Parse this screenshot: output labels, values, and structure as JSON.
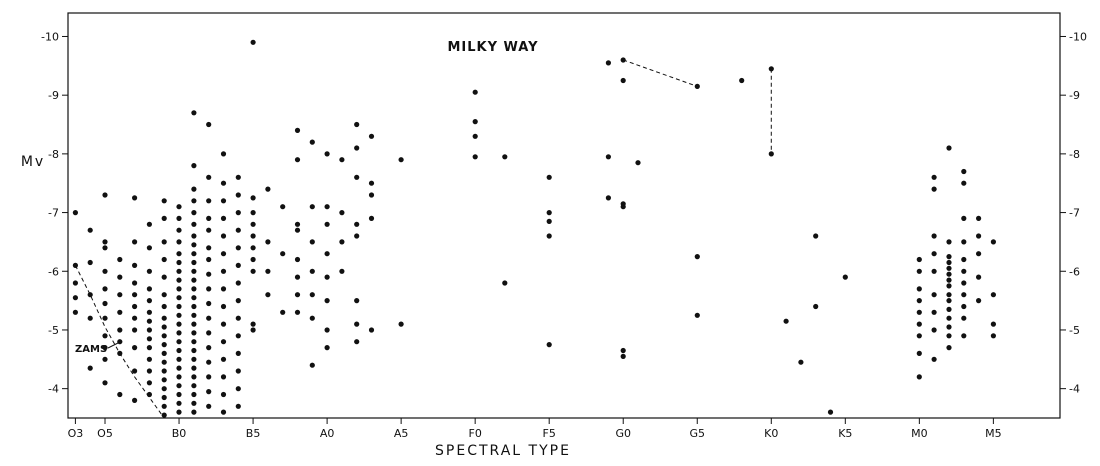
{
  "chart_data": {
    "type": "scatter",
    "title": "MILKY WAY",
    "xlabel": "SPECTRAL TYPE",
    "ylabel": "Mv",
    "x_ticks": [
      "O3",
      "O5",
      "B0",
      "B5",
      "A0",
      "A5",
      "F0",
      "F5",
      "G0",
      "G5",
      "K0",
      "K5",
      "M0",
      "M5"
    ],
    "x_tick_positions": [
      0,
      2,
      7,
      12,
      17,
      22,
      27,
      32,
      37,
      42,
      47,
      52,
      57,
      62
    ],
    "xlim": [
      -0.5,
      66.5
    ],
    "ylim": [
      -3.5,
      -10.4
    ],
    "y_ticks": [
      -4,
      -5,
      -6,
      -7,
      -8,
      -9,
      -10
    ],
    "y_tick_labels": [
      "-4",
      "-5",
      "-6",
      "-7",
      "-8",
      "-9",
      "-10"
    ],
    "annotation": "ZAMS",
    "zams_curve": [
      [
        0.0,
        -6.1
      ],
      [
        1.0,
        -5.6
      ],
      [
        2.0,
        -5.05
      ],
      [
        3.0,
        -4.6
      ],
      [
        4.0,
        -4.2
      ],
      [
        5.0,
        -3.85
      ],
      [
        6.0,
        -3.5
      ]
    ],
    "dashed_links": [
      [
        [
          37,
          -9.6
        ],
        [
          42,
          -9.15
        ]
      ],
      [
        [
          47,
          -9.45
        ],
        [
          47,
          -8.0
        ]
      ]
    ],
    "points": [
      [
        0,
        -7.0
      ],
      [
        0,
        -6.1
      ],
      [
        0,
        -5.8
      ],
      [
        0,
        -5.55
      ],
      [
        0,
        -5.3
      ],
      [
        1,
        -6.7
      ],
      [
        1,
        -6.15
      ],
      [
        1,
        -5.6
      ],
      [
        1,
        -5.2
      ],
      [
        1,
        -4.35
      ],
      [
        2,
        -7.3
      ],
      [
        2,
        -6.5
      ],
      [
        2,
        -6.4
      ],
      [
        2,
        -6.0
      ],
      [
        2,
        -5.7
      ],
      [
        2,
        -5.45
      ],
      [
        2,
        -5.2
      ],
      [
        2,
        -4.9
      ],
      [
        2,
        -4.7
      ],
      [
        2,
        -4.5
      ],
      [
        2,
        -4.1
      ],
      [
        3,
        -6.2
      ],
      [
        3,
        -5.9
      ],
      [
        3,
        -5.6
      ],
      [
        3,
        -5.3
      ],
      [
        3,
        -5.0
      ],
      [
        3,
        -4.8
      ],
      [
        3,
        -4.6
      ],
      [
        3,
        -3.9
      ],
      [
        4,
        -7.25
      ],
      [
        4,
        -6.5
      ],
      [
        4,
        -6.1
      ],
      [
        4,
        -5.8
      ],
      [
        4,
        -5.6
      ],
      [
        4,
        -5.4
      ],
      [
        4,
        -5.2
      ],
      [
        4,
        -5.0
      ],
      [
        4,
        -4.7
      ],
      [
        4,
        -4.3
      ],
      [
        4,
        -3.8
      ],
      [
        5,
        -6.8
      ],
      [
        5,
        -6.4
      ],
      [
        5,
        -6.0
      ],
      [
        5,
        -5.7
      ],
      [
        5,
        -5.5
      ],
      [
        5,
        -5.3
      ],
      [
        5,
        -5.15
      ],
      [
        5,
        -5.0
      ],
      [
        5,
        -4.85
      ],
      [
        5,
        -4.7
      ],
      [
        5,
        -4.5
      ],
      [
        5,
        -4.3
      ],
      [
        5,
        -4.1
      ],
      [
        5,
        -3.9
      ],
      [
        6,
        -7.2
      ],
      [
        6,
        -6.9
      ],
      [
        6,
        -6.5
      ],
      [
        6,
        -6.2
      ],
      [
        6,
        -5.9
      ],
      [
        6,
        -5.6
      ],
      [
        6,
        -5.4
      ],
      [
        6,
        -5.2
      ],
      [
        6,
        -5.05
      ],
      [
        6,
        -4.9
      ],
      [
        6,
        -4.75
      ],
      [
        6,
        -4.6
      ],
      [
        6,
        -4.45
      ],
      [
        6,
        -4.3
      ],
      [
        6,
        -4.15
      ],
      [
        6,
        -4.0
      ],
      [
        6,
        -3.85
      ],
      [
        6,
        -3.7
      ],
      [
        6,
        -3.55
      ],
      [
        7,
        -7.1
      ],
      [
        7,
        -6.9
      ],
      [
        7,
        -6.7
      ],
      [
        7,
        -6.5
      ],
      [
        7,
        -6.3
      ],
      [
        7,
        -6.15
      ],
      [
        7,
        -6.0
      ],
      [
        7,
        -5.85
      ],
      [
        7,
        -5.7
      ],
      [
        7,
        -5.55
      ],
      [
        7,
        -5.4
      ],
      [
        7,
        -5.25
      ],
      [
        7,
        -5.1
      ],
      [
        7,
        -4.95
      ],
      [
        7,
        -4.8
      ],
      [
        7,
        -4.65
      ],
      [
        7,
        -4.5
      ],
      [
        7,
        -4.35
      ],
      [
        7,
        -4.2
      ],
      [
        7,
        -4.05
      ],
      [
        7,
        -3.9
      ],
      [
        7,
        -3.75
      ],
      [
        7,
        -3.6
      ],
      [
        8,
        -8.7
      ],
      [
        8,
        -7.8
      ],
      [
        8,
        -7.4
      ],
      [
        8,
        -7.2
      ],
      [
        8,
        -7.0
      ],
      [
        8,
        -6.8
      ],
      [
        8,
        -6.6
      ],
      [
        8,
        -6.45
      ],
      [
        8,
        -6.3
      ],
      [
        8,
        -6.15
      ],
      [
        8,
        -6.0
      ],
      [
        8,
        -5.85
      ],
      [
        8,
        -5.7
      ],
      [
        8,
        -5.55
      ],
      [
        8,
        -5.4
      ],
      [
        8,
        -5.25
      ],
      [
        8,
        -5.1
      ],
      [
        8,
        -4.95
      ],
      [
        8,
        -4.8
      ],
      [
        8,
        -4.65
      ],
      [
        8,
        -4.5
      ],
      [
        8,
        -4.35
      ],
      [
        8,
        -4.2
      ],
      [
        8,
        -4.05
      ],
      [
        8,
        -3.9
      ],
      [
        8,
        -3.75
      ],
      [
        8,
        -3.6
      ],
      [
        9,
        -8.5
      ],
      [
        9,
        -7.6
      ],
      [
        9,
        -7.2
      ],
      [
        9,
        -6.9
      ],
      [
        9,
        -6.7
      ],
      [
        9,
        -6.4
      ],
      [
        9,
        -6.2
      ],
      [
        9,
        -5.95
      ],
      [
        9,
        -5.7
      ],
      [
        9,
        -5.45
      ],
      [
        9,
        -5.2
      ],
      [
        9,
        -4.95
      ],
      [
        9,
        -4.7
      ],
      [
        9,
        -4.45
      ],
      [
        9,
        -4.2
      ],
      [
        9,
        -3.95
      ],
      [
        9,
        -3.7
      ],
      [
        10,
        -8.0
      ],
      [
        10,
        -7.5
      ],
      [
        10,
        -7.2
      ],
      [
        10,
        -6.9
      ],
      [
        10,
        -6.6
      ],
      [
        10,
        -6.3
      ],
      [
        10,
        -6.0
      ],
      [
        10,
        -5.7
      ],
      [
        10,
        -5.4
      ],
      [
        10,
        -5.1
      ],
      [
        10,
        -4.8
      ],
      [
        10,
        -4.5
      ],
      [
        10,
        -4.2
      ],
      [
        10,
        -3.9
      ],
      [
        10,
        -3.6
      ],
      [
        11,
        -7.6
      ],
      [
        11,
        -7.3
      ],
      [
        11,
        -7.0
      ],
      [
        11,
        -6.7
      ],
      [
        11,
        -6.4
      ],
      [
        11,
        -6.1
      ],
      [
        11,
        -5.8
      ],
      [
        11,
        -5.5
      ],
      [
        11,
        -5.2
      ],
      [
        11,
        -4.9
      ],
      [
        11,
        -4.6
      ],
      [
        11,
        -4.3
      ],
      [
        11,
        -4.0
      ],
      [
        11,
        -3.7
      ],
      [
        12,
        -9.9
      ],
      [
        12,
        -7.25
      ],
      [
        12,
        -7.0
      ],
      [
        12,
        -6.8
      ],
      [
        12,
        -6.6
      ],
      [
        12,
        -6.4
      ],
      [
        12,
        -6.2
      ],
      [
        12,
        -6.0
      ],
      [
        12,
        -5.1
      ],
      [
        12,
        -5.0
      ],
      [
        13,
        -7.4
      ],
      [
        13,
        -6.5
      ],
      [
        13,
        -6.0
      ],
      [
        13,
        -5.6
      ],
      [
        14,
        -7.1
      ],
      [
        14,
        -6.3
      ],
      [
        14,
        -5.3
      ],
      [
        15,
        -8.4
      ],
      [
        15,
        -7.9
      ],
      [
        15,
        -6.8
      ],
      [
        15,
        -6.7
      ],
      [
        15,
        -6.2
      ],
      [
        15,
        -5.9
      ],
      [
        15,
        -5.6
      ],
      [
        15,
        -5.3
      ],
      [
        16,
        -8.2
      ],
      [
        16,
        -7.1
      ],
      [
        16,
        -6.5
      ],
      [
        16,
        -6.0
      ],
      [
        16,
        -5.6
      ],
      [
        16,
        -5.2
      ],
      [
        16,
        -4.4
      ],
      [
        17,
        -8.0
      ],
      [
        17,
        -7.1
      ],
      [
        17,
        -6.8
      ],
      [
        17,
        -6.3
      ],
      [
        17,
        -5.9
      ],
      [
        17,
        -5.5
      ],
      [
        17,
        -5.0
      ],
      [
        17,
        -4.7
      ],
      [
        18,
        -7.9
      ],
      [
        18,
        -7.0
      ],
      [
        18,
        -6.5
      ],
      [
        18,
        -6.0
      ],
      [
        19,
        -8.5
      ],
      [
        19,
        -8.1
      ],
      [
        19,
        -7.6
      ],
      [
        19,
        -6.8
      ],
      [
        19,
        -6.6
      ],
      [
        19,
        -5.5
      ],
      [
        19,
        -5.1
      ],
      [
        19,
        -4.8
      ],
      [
        20,
        -8.3
      ],
      [
        20,
        -7.5
      ],
      [
        20,
        -7.3
      ],
      [
        20,
        -6.9
      ],
      [
        20,
        -5.0
      ],
      [
        22,
        -7.9
      ],
      [
        22,
        -5.1
      ],
      [
        27,
        -9.05
      ],
      [
        27,
        -8.55
      ],
      [
        27,
        -8.3
      ],
      [
        27,
        -7.95
      ],
      [
        29,
        -7.95
      ],
      [
        29,
        -5.8
      ],
      [
        32,
        -7.6
      ],
      [
        32,
        -7.0
      ],
      [
        32,
        -6.85
      ],
      [
        32,
        -6.6
      ],
      [
        32,
        -4.75
      ],
      [
        36,
        -9.55
      ],
      [
        36,
        -7.95
      ],
      [
        36,
        -7.25
      ],
      [
        37,
        -9.6
      ],
      [
        37,
        -9.25
      ],
      [
        37,
        -7.15
      ],
      [
        37,
        -7.1
      ],
      [
        37,
        -4.65
      ],
      [
        37,
        -4.55
      ],
      [
        38,
        -7.85
      ],
      [
        42,
        -9.15
      ],
      [
        42,
        -6.25
      ],
      [
        42,
        -5.25
      ],
      [
        45,
        -9.25
      ],
      [
        47,
        -9.45
      ],
      [
        47,
        -8.0
      ],
      [
        48,
        -5.15
      ],
      [
        49,
        -4.45
      ],
      [
        50,
        -6.6
      ],
      [
        50,
        -5.4
      ],
      [
        51,
        -3.6
      ],
      [
        52,
        -5.9
      ],
      [
        57,
        -6.2
      ],
      [
        57,
        -6.0
      ],
      [
        57,
        -5.7
      ],
      [
        57,
        -5.5
      ],
      [
        57,
        -5.3
      ],
      [
        57,
        -5.1
      ],
      [
        57,
        -4.9
      ],
      [
        57,
        -4.6
      ],
      [
        57,
        -4.2
      ],
      [
        58,
        -7.6
      ],
      [
        58,
        -7.4
      ],
      [
        58,
        -6.6
      ],
      [
        58,
        -6.3
      ],
      [
        58,
        -6.0
      ],
      [
        58,
        -5.6
      ],
      [
        58,
        -5.3
      ],
      [
        58,
        -5.0
      ],
      [
        58,
        -4.5
      ],
      [
        59,
        -8.1
      ],
      [
        59,
        -6.5
      ],
      [
        59,
        -6.25
      ],
      [
        59,
        -6.15
      ],
      [
        59,
        -6.05
      ],
      [
        59,
        -5.95
      ],
      [
        59,
        -5.85
      ],
      [
        59,
        -5.75
      ],
      [
        59,
        -5.6
      ],
      [
        59,
        -5.5
      ],
      [
        59,
        -5.35
      ],
      [
        59,
        -5.2
      ],
      [
        59,
        -5.05
      ],
      [
        59,
        -4.9
      ],
      [
        59,
        -4.7
      ],
      [
        60,
        -7.7
      ],
      [
        60,
        -7.5
      ],
      [
        60,
        -6.9
      ],
      [
        60,
        -6.5
      ],
      [
        60,
        -6.2
      ],
      [
        60,
        -6.0
      ],
      [
        60,
        -5.8
      ],
      [
        60,
        -5.6
      ],
      [
        60,
        -5.4
      ],
      [
        60,
        -5.2
      ],
      [
        60,
        -4.9
      ],
      [
        61,
        -6.9
      ],
      [
        61,
        -6.6
      ],
      [
        61,
        -6.3
      ],
      [
        61,
        -5.9
      ],
      [
        61,
        -5.5
      ],
      [
        62,
        -6.5
      ],
      [
        62,
        -5.6
      ],
      [
        62,
        -5.1
      ],
      [
        62,
        -4.9
      ]
    ]
  }
}
